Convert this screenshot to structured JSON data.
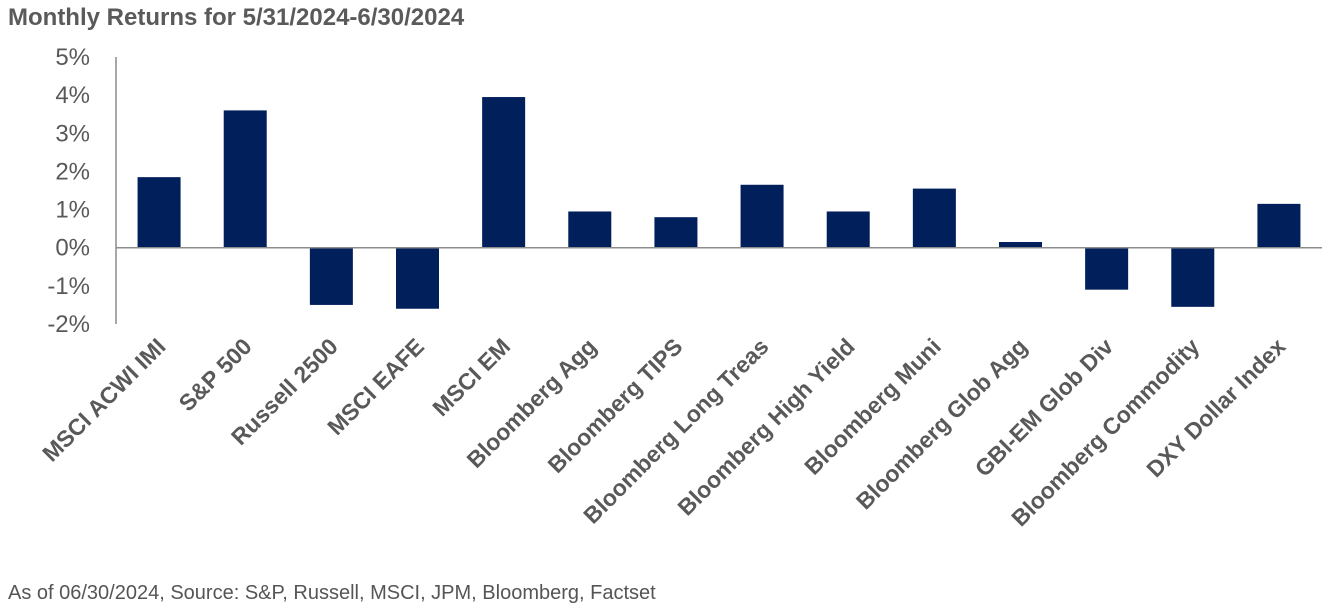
{
  "title": "Monthly Returns for 5/31/2024-6/30/2024",
  "footnote": "As of 06/30/2024, Source: S&P, Russell, MSCI, JPM, Bloomberg, Factset",
  "colors": {
    "bar": "#001f5b",
    "axis": "#8c8c8c",
    "text": "#595959"
  },
  "chart_data": {
    "type": "bar",
    "title": "Monthly Returns for 5/31/2024-6/30/2024",
    "xlabel": "",
    "ylabel": "",
    "ylim": [
      -2,
      5
    ],
    "yticks": [
      5,
      4,
      3,
      2,
      1,
      0,
      -1,
      -2
    ],
    "ytick_labels": [
      "5%",
      "4%",
      "3%",
      "2%",
      "1%",
      "0%",
      "-1%",
      "-2%"
    ],
    "grid": false,
    "legend": "none",
    "categories": [
      "MSCI ACWI IMI",
      "S&P 500",
      "Russell 2500",
      "MSCI EAFE",
      "MSCI EM",
      "Bloomberg Agg",
      "Bloomberg TIPS",
      "Bloomberg Long Treas",
      "Bloomberg High Yield",
      "Bloomberg Muni",
      "Bloomberg Glob Agg",
      "GBI-EM Glob Div",
      "Bloomberg Commodity",
      "DXY Dollar Index"
    ],
    "values": [
      1.85,
      3.6,
      -1.5,
      -1.6,
      3.95,
      0.95,
      0.8,
      1.65,
      0.95,
      1.55,
      0.15,
      -1.1,
      -1.55,
      1.15
    ]
  }
}
